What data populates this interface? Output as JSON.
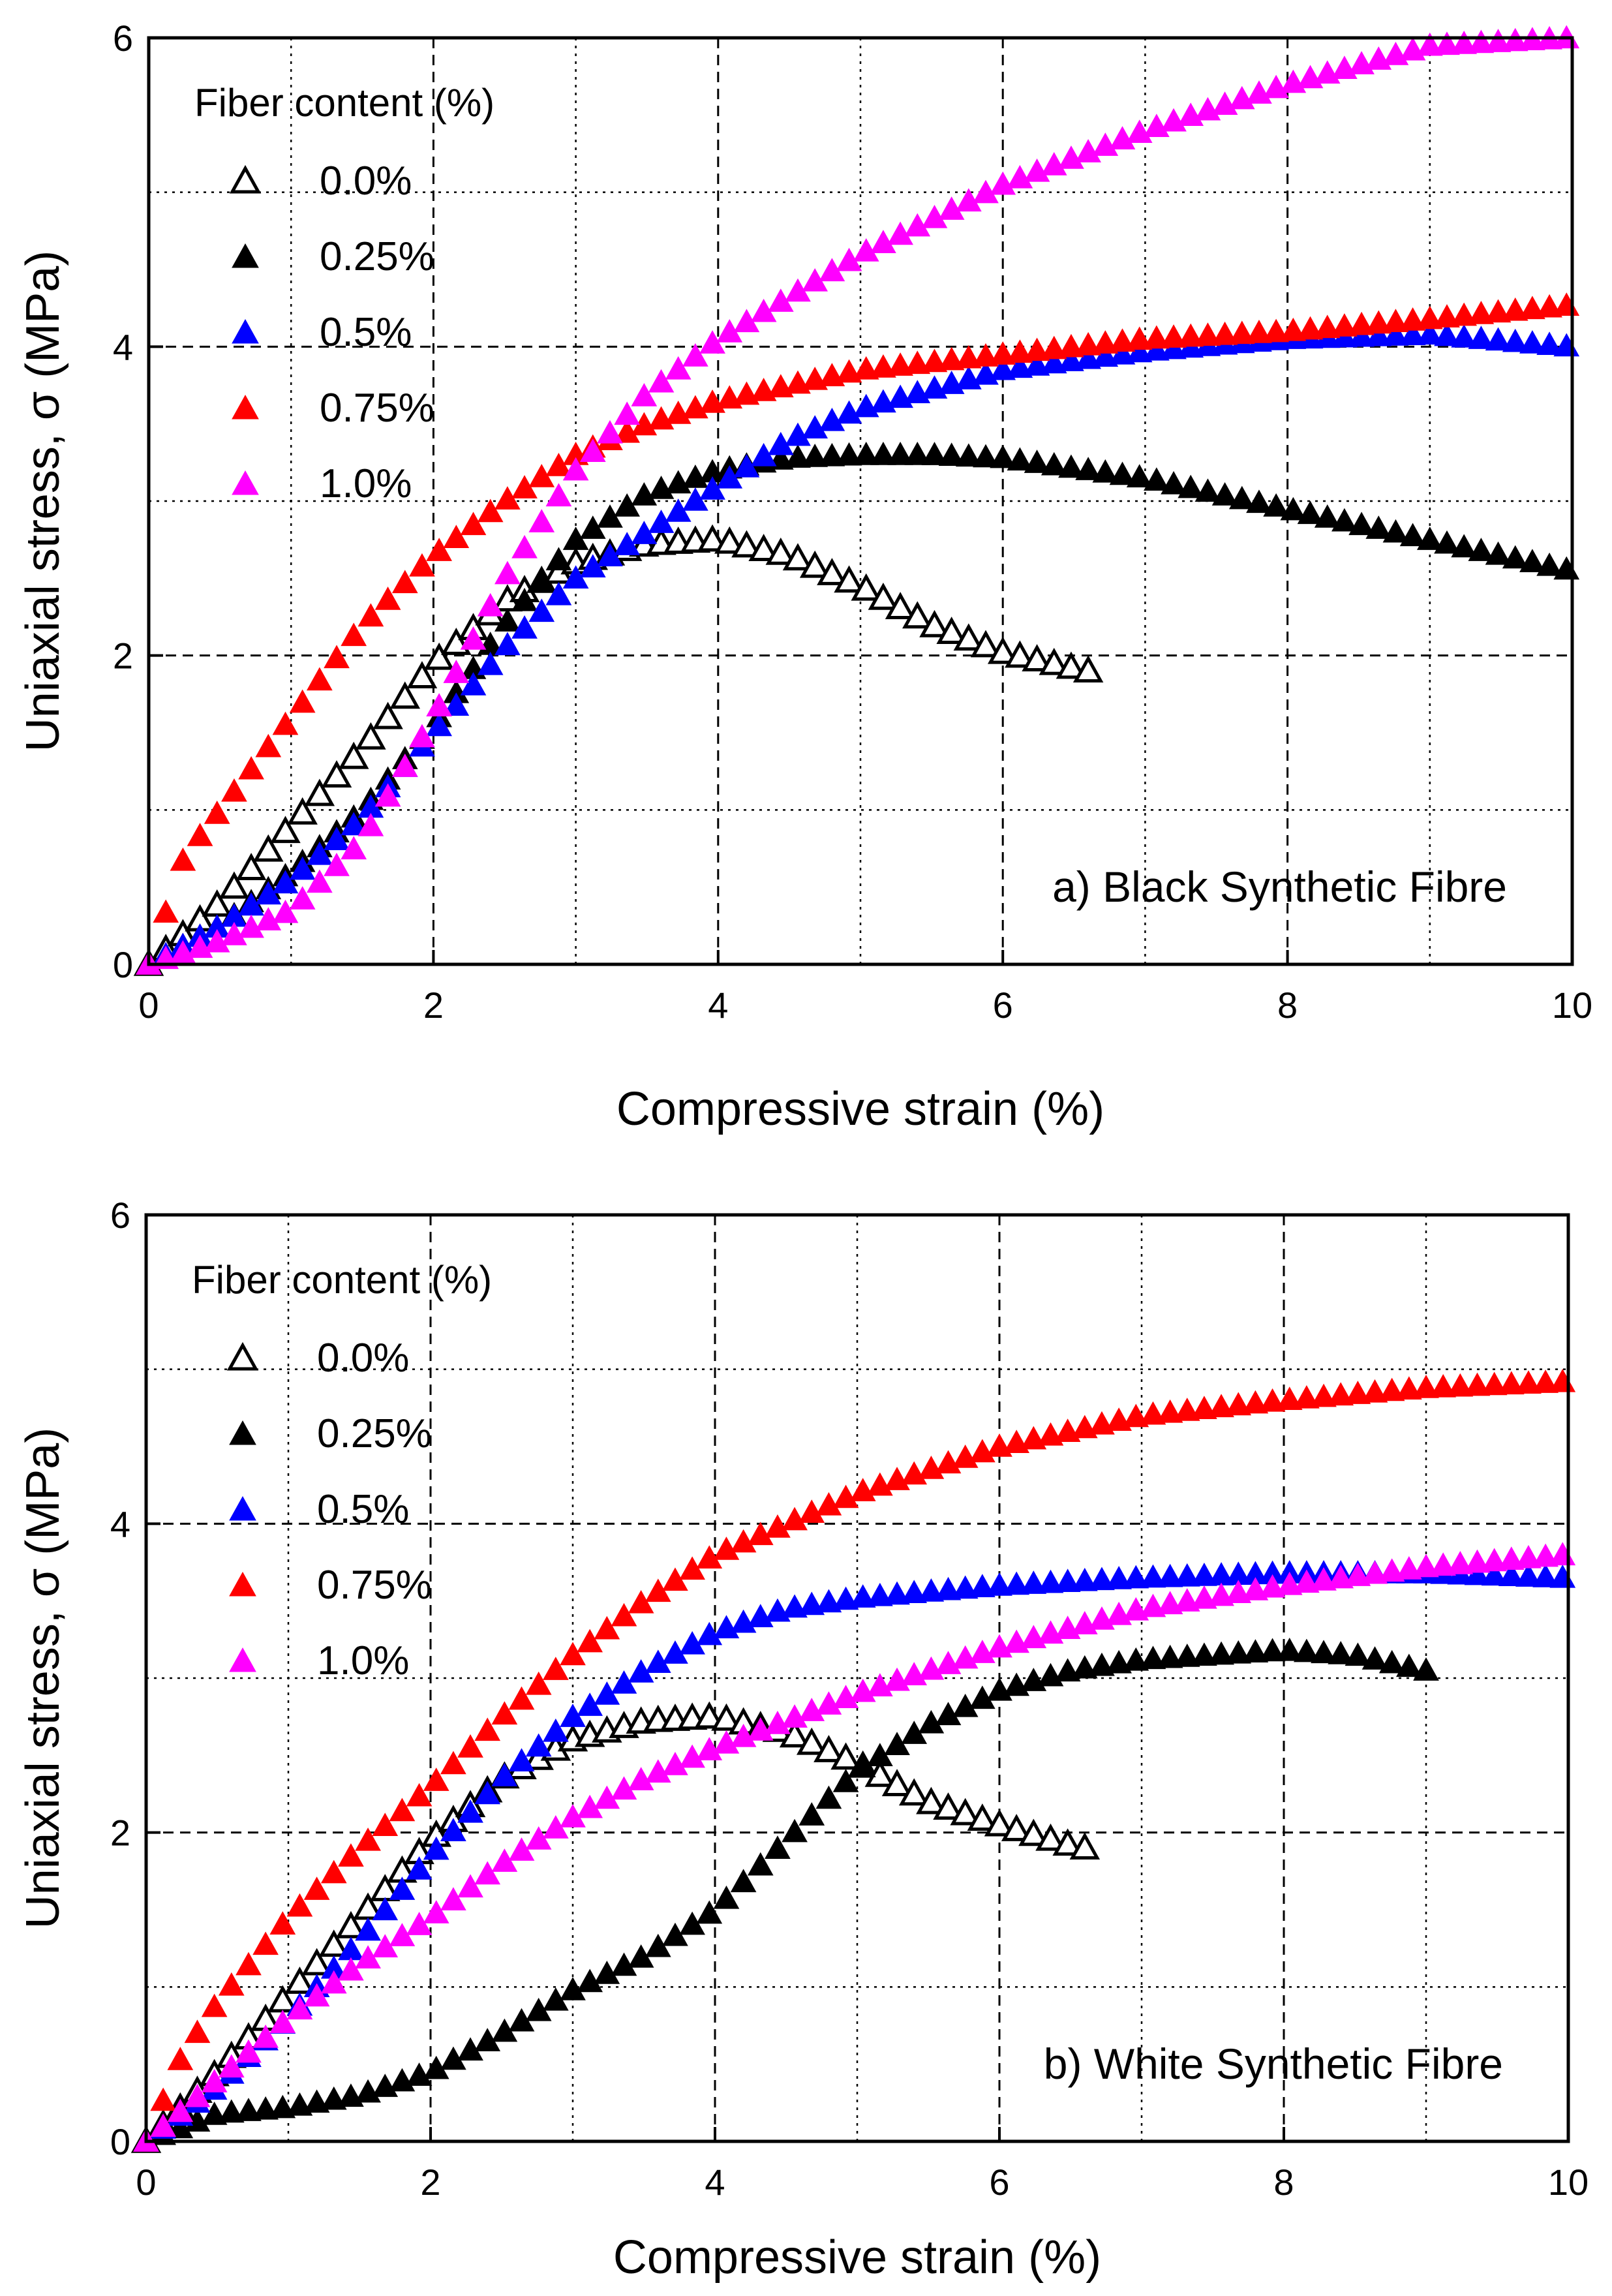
{
  "chart_data": [
    {
      "type": "scatter",
      "panel": "a",
      "annotation": "a) Black Synthetic Fibre",
      "xlabel": "Compressive strain (%)",
      "ylabel": "Uniaxial stress, σ (MPa)",
      "xlim": [
        0,
        10
      ],
      "ylim": [
        0,
        6
      ],
      "xticks": [
        "0",
        "2",
        "4",
        "6",
        "8",
        "10"
      ],
      "yticks": [
        "0",
        "2",
        "4",
        "6"
      ],
      "grid": true,
      "legend": {
        "title": "Fiber content (%)",
        "placement": "top-left"
      },
      "series": [
        {
          "name": "0.0%",
          "color": "#000000",
          "filled": false,
          "x": [
            0,
            0.5,
            1,
            1.5,
            2,
            2.5,
            3,
            3.5,
            4,
            4.5,
            5,
            5.5,
            6,
            6.5,
            6.7
          ],
          "y": [
            0,
            0.4,
            0.9,
            1.4,
            1.95,
            2.35,
            2.6,
            2.72,
            2.75,
            2.65,
            2.45,
            2.2,
            2.02,
            1.92,
            1.88
          ]
        },
        {
          "name": "0.25%",
          "color": "#000000",
          "filled": true,
          "x": [
            0,
            0.5,
            1,
            1.5,
            2,
            2.5,
            3,
            3.5,
            4,
            4.5,
            5,
            5.5,
            6,
            7,
            8,
            9,
            10
          ],
          "y": [
            0,
            0.25,
            0.6,
            1.0,
            1.55,
            2.2,
            2.75,
            3.05,
            3.2,
            3.28,
            3.3,
            3.3,
            3.28,
            3.15,
            2.95,
            2.75,
            2.55
          ]
        },
        {
          "name": "0.5%",
          "color": "#0000ff",
          "filled": true,
          "x": [
            0,
            0.5,
            1,
            1.5,
            2,
            2.5,
            3,
            3.5,
            4,
            4.5,
            5,
            6,
            7,
            8,
            9,
            10
          ],
          "y": [
            0,
            0.25,
            0.55,
            0.95,
            1.5,
            2.05,
            2.5,
            2.8,
            3.1,
            3.4,
            3.6,
            3.85,
            3.97,
            4.05,
            4.08,
            4.0
          ]
        },
        {
          "name": "0.75%",
          "color": "#ff0000",
          "filled": true,
          "x": [
            0,
            0.25,
            0.5,
            1,
            1.5,
            2,
            2.5,
            3,
            3.5,
            4,
            5,
            6,
            7,
            8,
            9,
            10
          ],
          "y": [
            0,
            0.7,
            1.0,
            1.6,
            2.2,
            2.65,
            3.0,
            3.3,
            3.5,
            3.65,
            3.85,
            3.95,
            4.05,
            4.1,
            4.18,
            4.27
          ]
        },
        {
          "name": "1.0%",
          "color": "#ff00ff",
          "filled": true,
          "x": [
            0,
            0.5,
            1,
            1.5,
            2,
            2.5,
            3,
            3.5,
            4,
            5,
            6,
            7,
            8,
            9,
            10
          ],
          "y": [
            0,
            0.15,
            0.35,
            0.8,
            1.6,
            2.5,
            3.2,
            3.7,
            4.05,
            4.6,
            5.05,
            5.4,
            5.7,
            5.95,
            6.0
          ]
        }
      ]
    },
    {
      "type": "scatter",
      "panel": "b",
      "annotation": "b) White Synthetic Fibre",
      "xlabel": "Compressive strain (%)",
      "ylabel": "Uniaxial stress, σ (MPa)",
      "xlim": [
        0,
        10
      ],
      "ylim": [
        0,
        6
      ],
      "xticks": [
        "0",
        "2",
        "4",
        "6",
        "8",
        "10"
      ],
      "yticks": [
        "0",
        "2",
        "4",
        "6"
      ],
      "grid": true,
      "legend": {
        "title": "Fiber content (%)",
        "placement": "top-left"
      },
      "series": [
        {
          "name": "0.0%",
          "color": "#000000",
          "filled": false,
          "x": [
            0,
            0.5,
            1,
            1.5,
            2,
            2.5,
            3,
            3.5,
            4,
            4.5,
            5,
            5.5,
            6,
            6.5,
            6.7
          ],
          "y": [
            0,
            0.45,
            0.95,
            1.45,
            1.95,
            2.35,
            2.6,
            2.72,
            2.75,
            2.65,
            2.45,
            2.2,
            2.05,
            1.92,
            1.88
          ]
        },
        {
          "name": "0.25%",
          "color": "#000000",
          "filled": true,
          "x": [
            0,
            0.5,
            1,
            1.5,
            2,
            2.5,
            3,
            3.5,
            4,
            4.5,
            5,
            5.5,
            6,
            6.5,
            7,
            7.5,
            8,
            8.5,
            9,
            9.1
          ],
          "y": [
            0,
            0.18,
            0.22,
            0.3,
            0.45,
            0.7,
            0.98,
            1.2,
            1.5,
            1.95,
            2.4,
            2.7,
            2.92,
            3.05,
            3.12,
            3.15,
            3.18,
            3.15,
            3.05,
            3.02
          ]
        },
        {
          "name": "0.5%",
          "color": "#0000ff",
          "filled": true,
          "x": [
            0,
            0.5,
            1,
            1.5,
            2,
            2.5,
            3,
            3.5,
            4,
            4.5,
            5,
            6,
            7,
            8,
            9,
            10
          ],
          "y": [
            0,
            0.35,
            0.8,
            1.3,
            1.85,
            2.35,
            2.75,
            3.05,
            3.3,
            3.45,
            3.52,
            3.6,
            3.65,
            3.68,
            3.68,
            3.65
          ]
        },
        {
          "name": "0.75%",
          "color": "#ff0000",
          "filled": true,
          "x": [
            0,
            0.25,
            0.5,
            1,
            1.5,
            2,
            2.5,
            3,
            3.5,
            4,
            5,
            6,
            7,
            8,
            9,
            10
          ],
          "y": [
            0,
            0.55,
            0.9,
            1.45,
            1.9,
            2.3,
            2.75,
            3.15,
            3.5,
            3.8,
            4.2,
            4.5,
            4.7,
            4.8,
            4.88,
            4.92
          ]
        },
        {
          "name": "1.0%",
          "color": "#ff00ff",
          "filled": true,
          "x": [
            0,
            0.5,
            1,
            1.5,
            2,
            2.5,
            3,
            3.5,
            4,
            5,
            6,
            7,
            8,
            9,
            10
          ],
          "y": [
            0,
            0.4,
            0.8,
            1.15,
            1.45,
            1.8,
            2.1,
            2.35,
            2.55,
            2.9,
            3.2,
            3.45,
            3.6,
            3.72,
            3.8
          ]
        }
      ]
    }
  ]
}
